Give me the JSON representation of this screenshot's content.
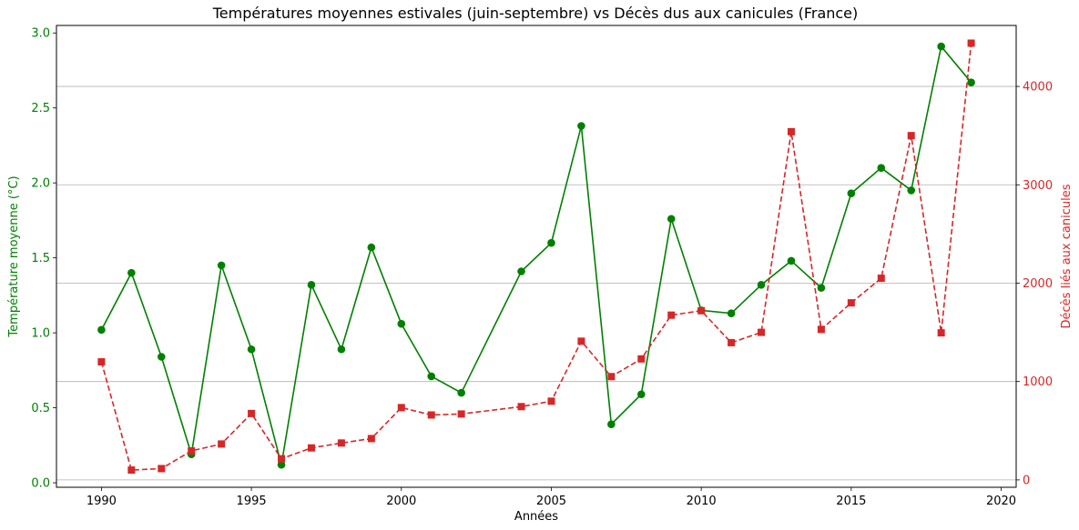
{
  "chart_data": {
    "type": "line",
    "title": "Températures moyennes estivales (juin-septembre) vs Décès dus aux canicules (France)",
    "xlabel": "Années",
    "ylabel_left": "Température moyenne (°C)",
    "ylabel_right": "Décès liés aux canicules",
    "xlim": [
      1988.5,
      2020.5
    ],
    "ylim_left": [
      -0.03,
      3.05
    ],
    "ylim_right": [
      -75,
      4620
    ],
    "x_ticks": [
      1990,
      1995,
      2000,
      2005,
      2010,
      2015,
      2020
    ],
    "y_ticks_left": [
      "0.0",
      "0.5",
      "1.0",
      "1.5",
      "2.0",
      "2.5",
      "3.0"
    ],
    "y_ticks_right": [
      0,
      1000,
      2000,
      3000,
      4000
    ],
    "grid": "horizontal-right-axis",
    "left_color": "#008000",
    "right_color": "#d62728",
    "series": [
      {
        "axis": "left",
        "marker": "circle",
        "style": "solid",
        "color": "#008000",
        "points": [
          [
            1990,
            1.02
          ],
          [
            1991,
            1.4
          ],
          [
            1992,
            0.84
          ],
          [
            1993,
            0.19
          ],
          [
            1994,
            1.45
          ],
          [
            1995,
            0.89
          ],
          [
            1996,
            0.12
          ],
          [
            1997,
            1.32
          ],
          [
            1998,
            0.89
          ],
          [
            1999,
            1.57
          ],
          [
            2000,
            1.06
          ],
          [
            2001,
            0.71
          ],
          [
            2002,
            0.6
          ],
          [
            2004,
            1.41
          ],
          [
            2005,
            1.6
          ],
          [
            2006,
            2.38
          ],
          [
            2007,
            0.39
          ],
          [
            2008,
            0.59
          ],
          [
            2009,
            1.76
          ],
          [
            2010,
            1.15
          ],
          [
            2011,
            1.13
          ],
          [
            2012,
            1.32
          ],
          [
            2013,
            1.48
          ],
          [
            2014,
            1.3
          ],
          [
            2015,
            1.93
          ],
          [
            2016,
            2.1
          ],
          [
            2017,
            1.95
          ],
          [
            2018,
            2.91
          ],
          [
            2019,
            2.67
          ]
        ]
      },
      {
        "axis": "right",
        "marker": "square",
        "style": "dashed",
        "color": "#d62728",
        "points": [
          [
            1990,
            1200
          ],
          [
            1991,
            100
          ],
          [
            1992,
            115
          ],
          [
            1993,
            295
          ],
          [
            1994,
            365
          ],
          [
            1995,
            675
          ],
          [
            1996,
            215
          ],
          [
            1997,
            325
          ],
          [
            1998,
            375
          ],
          [
            1999,
            420
          ],
          [
            2000,
            735
          ],
          [
            2001,
            660
          ],
          [
            2002,
            670
          ],
          [
            2004,
            745
          ],
          [
            2005,
            800
          ],
          [
            2006,
            1410
          ],
          [
            2007,
            1050
          ],
          [
            2008,
            1230
          ],
          [
            2009,
            1675
          ],
          [
            2010,
            1720
          ],
          [
            2011,
            1395
          ],
          [
            2012,
            1500
          ],
          [
            2013,
            3540
          ],
          [
            2014,
            1530
          ],
          [
            2015,
            1800
          ],
          [
            2016,
            2050
          ],
          [
            2017,
            3500
          ],
          [
            2018,
            1495
          ],
          [
            2019,
            4440
          ]
        ]
      }
    ]
  }
}
